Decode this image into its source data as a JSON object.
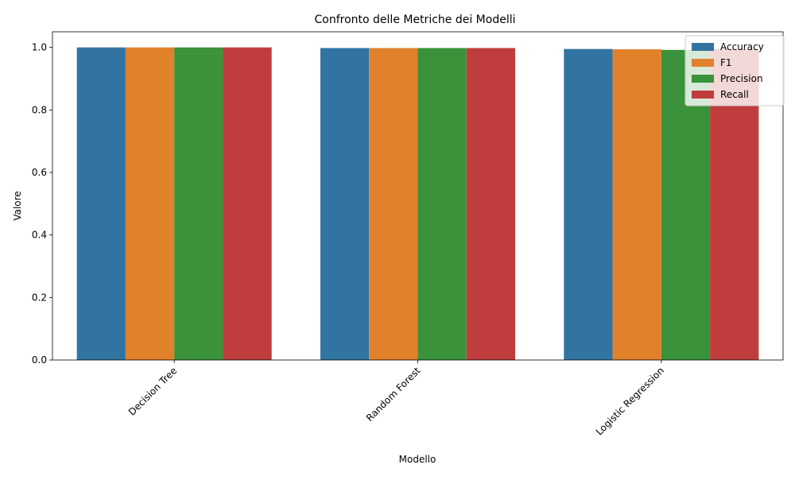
{
  "chart_data": {
    "type": "bar",
    "title": "Confronto delle Metriche dei Modelli",
    "xlabel": "Modello",
    "ylabel": "Valore",
    "categories": [
      "Decision Tree",
      "Random Forest",
      "Logistic Regression"
    ],
    "series": [
      {
        "name": "Accuracy",
        "color": "#3274a1",
        "values": [
          1.0,
          0.998,
          0.995
        ]
      },
      {
        "name": "F1",
        "color": "#e1812c",
        "values": [
          1.0,
          0.998,
          0.994
        ]
      },
      {
        "name": "Precision",
        "color": "#3a923a",
        "values": [
          1.0,
          0.998,
          0.992
        ]
      },
      {
        "name": "Recall",
        "color": "#c03d3e",
        "values": [
          1.0,
          0.998,
          0.995
        ]
      }
    ],
    "ylim": [
      0,
      1.05
    ],
    "yticks": [
      "0.0",
      "0.2",
      "0.4",
      "0.6",
      "0.8",
      "1.0"
    ],
    "grid": false,
    "legend_position": "top-right"
  }
}
